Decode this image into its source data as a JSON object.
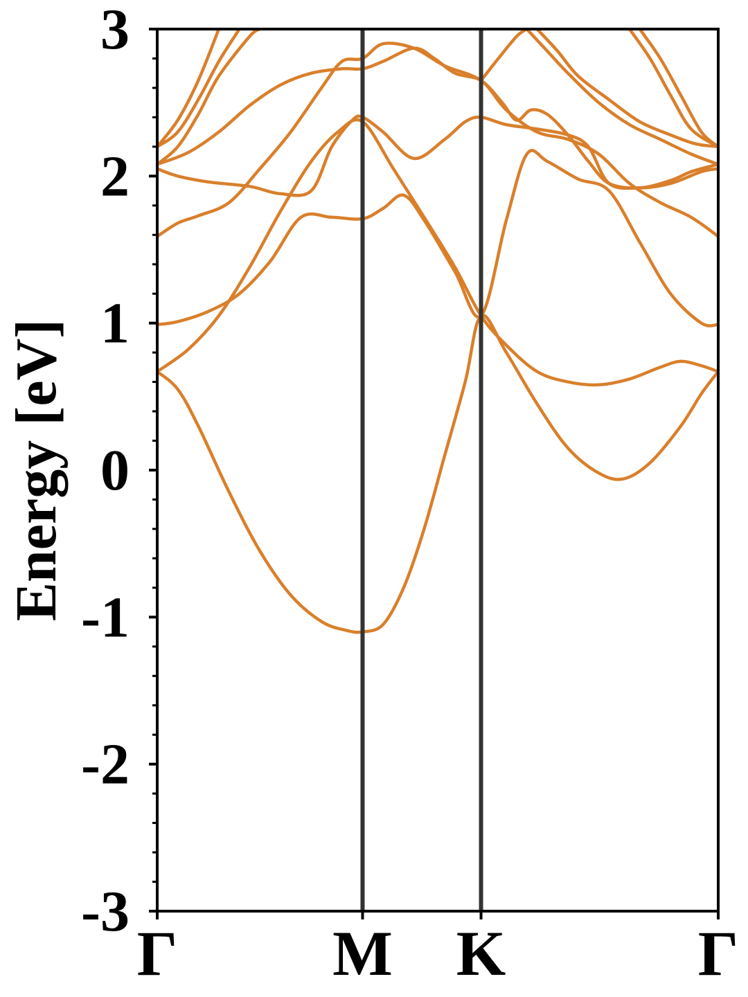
{
  "chart_data": {
    "type": "line",
    "title": "",
    "xlabel": "",
    "ylabel": "Energy [eV]",
    "ylim": [
      -3,
      3
    ],
    "yticks": [
      -3,
      -2,
      -1,
      0,
      1,
      2,
      3
    ],
    "ytick_labels": [
      "-3",
      "-2",
      "-1",
      "0",
      "1",
      "2",
      "3"
    ],
    "xlim": [
      0,
      2.732
    ],
    "kpoints": [
      {
        "label": "Γ",
        "x": 0
      },
      {
        "label": "M",
        "x": 1.0
      },
      {
        "label": "K",
        "x": 1.577
      },
      {
        "label": "Γ",
        "x": 2.732
      }
    ],
    "grid": false,
    "colors": {
      "band": "#d97f2b",
      "kline": "#333333",
      "axis": "#000000"
    },
    "series": [
      {
        "values": [
          [
            0,
            0.67
          ],
          [
            0.1,
            0.55
          ],
          [
            0.2,
            0.3
          ],
          [
            0.35,
            -0.15
          ],
          [
            0.5,
            -0.55
          ],
          [
            0.65,
            -0.85
          ],
          [
            0.8,
            -1.03
          ],
          [
            0.92,
            -1.09
          ],
          [
            1.0,
            -1.1
          ],
          [
            1.1,
            -1.05
          ],
          [
            1.2,
            -0.8
          ],
          [
            1.3,
            -0.4
          ],
          [
            1.4,
            0.1
          ],
          [
            1.5,
            0.6
          ],
          [
            1.577,
            1.05
          ],
          [
            1.7,
            0.8
          ],
          [
            1.85,
            0.45
          ],
          [
            2.0,
            0.15
          ],
          [
            2.15,
            -0.02
          ],
          [
            2.27,
            -0.06
          ],
          [
            2.4,
            0.05
          ],
          [
            2.55,
            0.3
          ],
          [
            2.65,
            0.52
          ],
          [
            2.732,
            0.67
          ]
        ]
      },
      {
        "values": [
          [
            0,
            0.67
          ],
          [
            0.15,
            0.82
          ],
          [
            0.3,
            1.05
          ],
          [
            0.45,
            1.38
          ],
          [
            0.6,
            1.76
          ],
          [
            0.75,
            2.1
          ],
          [
            0.88,
            2.3
          ],
          [
            1.0,
            2.37
          ],
          [
            1.15,
            2.05
          ],
          [
            1.3,
            1.72
          ],
          [
            1.45,
            1.38
          ],
          [
            1.577,
            1.05
          ],
          [
            1.7,
            0.85
          ],
          [
            1.85,
            0.67
          ],
          [
            2.0,
            0.6
          ],
          [
            2.15,
            0.58
          ],
          [
            2.3,
            0.62
          ],
          [
            2.45,
            0.7
          ],
          [
            2.55,
            0.74
          ],
          [
            2.65,
            0.71
          ],
          [
            2.732,
            0.67
          ]
        ]
      },
      {
        "values": [
          [
            0,
            0.99
          ],
          [
            0.1,
            1.01
          ],
          [
            0.25,
            1.08
          ],
          [
            0.4,
            1.2
          ],
          [
            0.55,
            1.42
          ],
          [
            0.7,
            1.72
          ],
          [
            0.85,
            1.72
          ],
          [
            1.0,
            1.71
          ],
          [
            1.1,
            1.78
          ],
          [
            1.2,
            1.87
          ],
          [
            1.3,
            1.7
          ],
          [
            1.45,
            1.35
          ],
          [
            1.577,
            1.05
          ],
          [
            1.7,
            1.7
          ],
          [
            1.8,
            2.15
          ],
          [
            1.9,
            2.1
          ],
          [
            2.05,
            1.98
          ],
          [
            2.2,
            1.9
          ],
          [
            2.35,
            1.55
          ],
          [
            2.5,
            1.2
          ],
          [
            2.65,
            1.0
          ],
          [
            2.732,
            0.99
          ]
        ]
      },
      {
        "values": [
          [
            0,
            1.59
          ],
          [
            0.1,
            1.68
          ],
          [
            0.2,
            1.73
          ],
          [
            0.35,
            1.82
          ],
          [
            0.5,
            2.05
          ],
          [
            0.65,
            2.3
          ],
          [
            0.8,
            2.6
          ],
          [
            0.9,
            2.78
          ],
          [
            1.0,
            2.8
          ],
          [
            1.1,
            2.9
          ],
          [
            1.25,
            2.87
          ],
          [
            1.4,
            2.75
          ],
          [
            1.577,
            2.65
          ],
          [
            1.7,
            2.45
          ],
          [
            1.85,
            2.3
          ],
          [
            2.0,
            2.25
          ],
          [
            2.15,
            2.15
          ],
          [
            2.3,
            1.95
          ],
          [
            2.45,
            1.82
          ],
          [
            2.6,
            1.72
          ],
          [
            2.732,
            1.59
          ]
        ]
      },
      {
        "values": [
          [
            0,
            2.05
          ],
          [
            0.1,
            2.0
          ],
          [
            0.25,
            1.96
          ],
          [
            0.45,
            1.93
          ],
          [
            0.6,
            1.88
          ],
          [
            0.75,
            1.9
          ],
          [
            0.85,
            2.2
          ],
          [
            0.95,
            2.38
          ],
          [
            1.0,
            2.4
          ],
          [
            1.1,
            2.3
          ],
          [
            1.25,
            2.12
          ],
          [
            1.4,
            2.25
          ],
          [
            1.5,
            2.37
          ],
          [
            1.577,
            2.4
          ],
          [
            1.7,
            2.35
          ],
          [
            1.85,
            2.32
          ],
          [
            2.0,
            2.28
          ],
          [
            2.1,
            2.2
          ],
          [
            2.2,
            1.95
          ],
          [
            2.35,
            1.92
          ],
          [
            2.5,
            1.95
          ],
          [
            2.65,
            2.03
          ],
          [
            2.732,
            2.05
          ]
        ]
      },
      {
        "values": [
          [
            0,
            2.08
          ],
          [
            0.15,
            2.16
          ],
          [
            0.3,
            2.3
          ],
          [
            0.45,
            2.48
          ],
          [
            0.6,
            2.62
          ],
          [
            0.75,
            2.7
          ],
          [
            0.9,
            2.73
          ],
          [
            1.0,
            2.73
          ],
          [
            1.1,
            2.78
          ],
          [
            1.25,
            2.87
          ],
          [
            1.35,
            2.8
          ],
          [
            1.45,
            2.7
          ],
          [
            1.577,
            2.65
          ],
          [
            1.68,
            2.5
          ],
          [
            1.75,
            2.38
          ],
          [
            1.82,
            2.45
          ],
          [
            1.9,
            2.42
          ],
          [
            2.0,
            2.28
          ],
          [
            2.1,
            2.1
          ],
          [
            2.2,
            1.95
          ],
          [
            2.35,
            1.92
          ],
          [
            2.5,
            1.97
          ],
          [
            2.6,
            2.03
          ],
          [
            2.732,
            2.08
          ]
        ]
      },
      {
        "values": [
          [
            0,
            2.08
          ],
          [
            0.1,
            2.2
          ],
          [
            0.2,
            2.42
          ],
          [
            0.3,
            2.68
          ],
          [
            0.45,
            2.95
          ],
          [
            0.5,
            3.0
          ]
        ]
      },
      {
        "values": [
          [
            0,
            2.2
          ],
          [
            0.1,
            2.3
          ],
          [
            0.2,
            2.52
          ],
          [
            0.3,
            2.78
          ],
          [
            0.4,
            3.0
          ]
        ]
      },
      {
        "values": [
          [
            0,
            2.2
          ],
          [
            0.1,
            2.38
          ],
          [
            0.2,
            2.65
          ],
          [
            0.3,
            3.0
          ]
        ]
      },
      {
        "values": [
          [
            1.577,
            2.65
          ],
          [
            1.65,
            2.78
          ],
          [
            1.75,
            2.95
          ],
          [
            1.8,
            3.0
          ]
        ]
      },
      {
        "values": [
          [
            1.8,
            3.0
          ],
          [
            1.9,
            2.85
          ],
          [
            2.0,
            2.7
          ],
          [
            2.15,
            2.5
          ],
          [
            2.3,
            2.35
          ],
          [
            2.45,
            2.25
          ],
          [
            2.6,
            2.15
          ],
          [
            2.732,
            2.08
          ]
        ]
      },
      {
        "values": [
          [
            1.85,
            3.0
          ],
          [
            1.95,
            2.85
          ],
          [
            2.05,
            2.68
          ],
          [
            2.2,
            2.52
          ],
          [
            2.35,
            2.37
          ],
          [
            2.5,
            2.28
          ],
          [
            2.62,
            2.22
          ],
          [
            2.732,
            2.2
          ]
        ]
      },
      {
        "values": [
          [
            2.35,
            3.0
          ],
          [
            2.45,
            2.8
          ],
          [
            2.55,
            2.55
          ],
          [
            2.65,
            2.3
          ],
          [
            2.732,
            2.2
          ]
        ]
      },
      {
        "values": [
          [
            2.3,
            3.0
          ],
          [
            2.4,
            2.8
          ],
          [
            2.5,
            2.55
          ],
          [
            2.6,
            2.32
          ],
          [
            2.732,
            2.2
          ]
        ]
      }
    ]
  }
}
